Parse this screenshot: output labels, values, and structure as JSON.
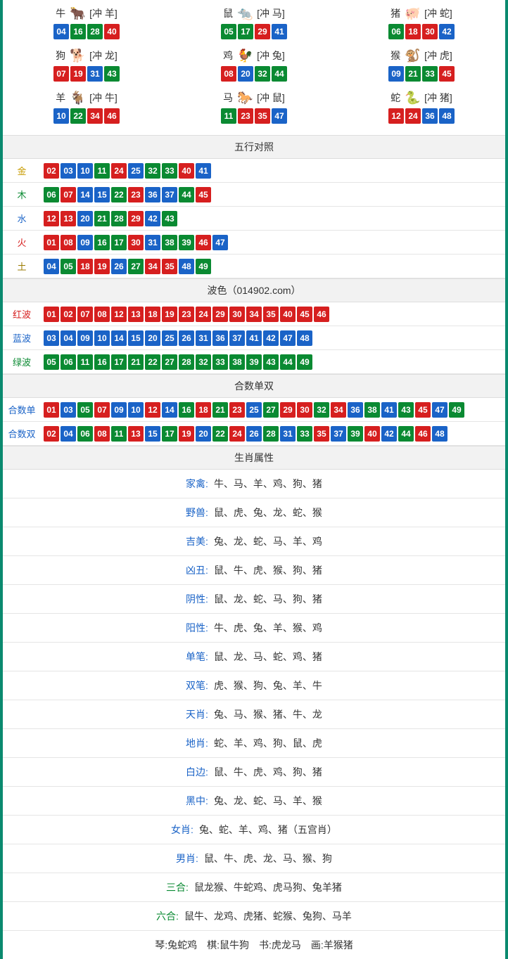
{
  "colors": {
    "red": "#d61f1f",
    "blue": "#1a63c7",
    "green": "#0a8a32",
    "gold": "#c79b00",
    "wood": "#0a8a32",
    "water": "#1a63c7",
    "fire": "#d61f1f",
    "earth": "#9a7a00",
    "border_teal": "#0a8a6f",
    "head_bg": "#f2f2f2",
    "line": "#e5e5e5"
  },
  "ball_colors": {
    "01": "red",
    "02": "red",
    "07": "red",
    "08": "red",
    "12": "red",
    "13": "red",
    "18": "red",
    "19": "red",
    "23": "red",
    "24": "red",
    "29": "red",
    "30": "red",
    "34": "red",
    "35": "red",
    "40": "red",
    "45": "red",
    "46": "red",
    "03": "blue",
    "04": "blue",
    "09": "blue",
    "10": "blue",
    "14": "blue",
    "15": "blue",
    "20": "blue",
    "25": "blue",
    "26": "blue",
    "31": "blue",
    "36": "blue",
    "37": "blue",
    "41": "blue",
    "42": "blue",
    "47": "blue",
    "48": "blue",
    "05": "green",
    "06": "green",
    "11": "green",
    "16": "green",
    "17": "green",
    "21": "green",
    "22": "green",
    "27": "green",
    "28": "green",
    "32": "green",
    "33": "green",
    "38": "green",
    "39": "green",
    "43": "green",
    "44": "green",
    "49": "green"
  },
  "zodiac": [
    {
      "name": "牛",
      "emoji": "🐂",
      "clash": "[冲 羊]",
      "balls": [
        "04",
        "16",
        "28",
        "40"
      ]
    },
    {
      "name": "鼠",
      "emoji": "🐀",
      "clash": "[冲 马]",
      "balls": [
        "05",
        "17",
        "29",
        "41"
      ]
    },
    {
      "name": "猪",
      "emoji": "🐖",
      "clash": "[冲 蛇]",
      "balls": [
        "06",
        "18",
        "30",
        "42"
      ]
    },
    {
      "name": "狗",
      "emoji": "🐕",
      "clash": "[冲 龙]",
      "balls": [
        "07",
        "19",
        "31",
        "43"
      ]
    },
    {
      "name": "鸡",
      "emoji": "🐓",
      "clash": "[冲 兔]",
      "balls": [
        "08",
        "20",
        "32",
        "44"
      ]
    },
    {
      "name": "猴",
      "emoji": "🐒",
      "clash": "[冲 虎]",
      "balls": [
        "09",
        "21",
        "33",
        "45"
      ]
    },
    {
      "name": "羊",
      "emoji": "🐐",
      "clash": "[冲 牛]",
      "balls": [
        "10",
        "22",
        "34",
        "46"
      ]
    },
    {
      "name": "马",
      "emoji": "🐎",
      "clash": "[冲 鼠]",
      "balls": [
        "11",
        "23",
        "35",
        "47"
      ]
    },
    {
      "name": "蛇",
      "emoji": "🐍",
      "clash": "[冲 猪]",
      "balls": [
        "12",
        "24",
        "36",
        "48"
      ]
    }
  ],
  "sections": {
    "wuxing": {
      "title": "五行对照",
      "rows": [
        {
          "label": "金",
          "label_color": "gold",
          "balls": [
            "02",
            "03",
            "10",
            "11",
            "24",
            "25",
            "32",
            "33",
            "40",
            "41"
          ]
        },
        {
          "label": "木",
          "label_color": "wood",
          "balls": [
            "06",
            "07",
            "14",
            "15",
            "22",
            "23",
            "36",
            "37",
            "44",
            "45"
          ]
        },
        {
          "label": "水",
          "label_color": "water",
          "balls": [
            "12",
            "13",
            "20",
            "21",
            "28",
            "29",
            "42",
            "43"
          ]
        },
        {
          "label": "火",
          "label_color": "fire",
          "balls": [
            "01",
            "08",
            "09",
            "16",
            "17",
            "30",
            "31",
            "38",
            "39",
            "46",
            "47"
          ]
        },
        {
          "label": "土",
          "label_color": "earth",
          "balls": [
            "04",
            "05",
            "18",
            "19",
            "26",
            "27",
            "34",
            "35",
            "48",
            "49"
          ]
        }
      ]
    },
    "bose": {
      "title": "波色（014902.com）",
      "rows": [
        {
          "label": "红波",
          "label_color": "fire",
          "balls": [
            "01",
            "02",
            "07",
            "08",
            "12",
            "13",
            "18",
            "19",
            "23",
            "24",
            "29",
            "30",
            "34",
            "35",
            "40",
            "45",
            "46"
          ]
        },
        {
          "label": "蓝波",
          "label_color": "water",
          "balls": [
            "03",
            "04",
            "09",
            "10",
            "14",
            "15",
            "20",
            "25",
            "26",
            "31",
            "36",
            "37",
            "41",
            "42",
            "47",
            "48"
          ]
        },
        {
          "label": "绿波",
          "label_color": "wood",
          "balls": [
            "05",
            "06",
            "11",
            "16",
            "17",
            "21",
            "22",
            "27",
            "28",
            "32",
            "33",
            "38",
            "39",
            "43",
            "44",
            "49"
          ]
        }
      ]
    },
    "heshu": {
      "title": "合数单双",
      "rows": [
        {
          "label": "合数单",
          "label_color": "water",
          "balls": [
            "01",
            "03",
            "05",
            "07",
            "09",
            "10",
            "12",
            "14",
            "16",
            "18",
            "21",
            "23",
            "25",
            "27",
            "29",
            "30",
            "32",
            "34",
            "36",
            "38",
            "41",
            "43",
            "45",
            "47",
            "49"
          ]
        },
        {
          "label": "合数双",
          "label_color": "water",
          "balls": [
            "02",
            "04",
            "06",
            "08",
            "11",
            "13",
            "15",
            "17",
            "19",
            "20",
            "22",
            "24",
            "26",
            "28",
            "31",
            "33",
            "35",
            "37",
            "39",
            "40",
            "42",
            "44",
            "46",
            "48"
          ]
        }
      ]
    },
    "shuxing": {
      "title": "生肖属性",
      "rows": [
        {
          "label": "家禽:",
          "label_color": "blue",
          "text": "牛、马、羊、鸡、狗、猪"
        },
        {
          "label": "野兽:",
          "label_color": "blue",
          "text": "鼠、虎、兔、龙、蛇、猴"
        },
        {
          "label": "吉美:",
          "label_color": "blue",
          "text": "兔、龙、蛇、马、羊、鸡"
        },
        {
          "label": "凶丑:",
          "label_color": "blue",
          "text": "鼠、牛、虎、猴、狗、猪"
        },
        {
          "label": "阴性:",
          "label_color": "blue",
          "text": "鼠、龙、蛇、马、狗、猪"
        },
        {
          "label": "阳性:",
          "label_color": "blue",
          "text": "牛、虎、兔、羊、猴、鸡"
        },
        {
          "label": "单笔:",
          "label_color": "blue",
          "text": "鼠、龙、马、蛇、鸡、猪"
        },
        {
          "label": "双笔:",
          "label_color": "blue",
          "text": "虎、猴、狗、兔、羊、牛"
        },
        {
          "label": "天肖:",
          "label_color": "blue",
          "text": "兔、马、猴、猪、牛、龙"
        },
        {
          "label": "地肖:",
          "label_color": "blue",
          "text": "蛇、羊、鸡、狗、鼠、虎"
        },
        {
          "label": "白边:",
          "label_color": "blue",
          "text": "鼠、牛、虎、鸡、狗、猪"
        },
        {
          "label": "黑中:",
          "label_color": "blue",
          "text": "兔、龙、蛇、马、羊、猴"
        },
        {
          "label": "女肖:",
          "label_color": "blue",
          "text": "兔、蛇、羊、鸡、猪（五宫肖）"
        },
        {
          "label": "男肖:",
          "label_color": "blue",
          "text": "鼠、牛、虎、龙、马、猴、狗"
        },
        {
          "label": "三合:",
          "label_color": "green",
          "text": "鼠龙猴、牛蛇鸡、虎马狗、兔羊猪"
        },
        {
          "label": "六合:",
          "label_color": "green",
          "text": "鼠牛、龙鸡、虎猪、蛇猴、兔狗、马羊"
        }
      ],
      "footer": "琴:兔蛇鸡　棋:鼠牛狗　书:虎龙马　画:羊猴猪"
    }
  }
}
